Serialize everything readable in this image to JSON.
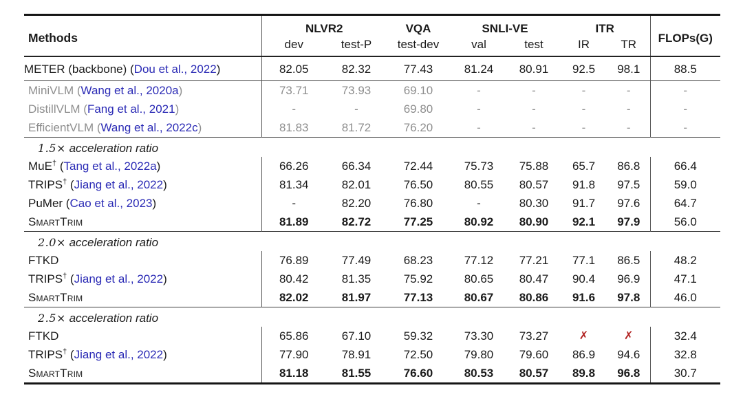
{
  "table": {
    "colors": {
      "citation": "#2a2ab5",
      "muted_text": "#8e8e8e",
      "cross_mark": "#b1201f"
    },
    "header": {
      "methods_label": "Methods",
      "groups": [
        {
          "label": "NLVR2"
        },
        {
          "label": "VQA"
        },
        {
          "label": "SNLI-VE"
        },
        {
          "label": "ITR"
        }
      ],
      "subs": [
        "dev",
        "test-P",
        "test-dev",
        "val",
        "test",
        "IR",
        "TR"
      ],
      "flops_label": "FLOPs(G)"
    },
    "sections": [
      {
        "id": "backbone",
        "roomy": true,
        "rows": [
          {
            "name": "METER (backbone) ",
            "cite": "Dou et al., 2022",
            "values": [
              "82.05",
              "82.32",
              "77.43",
              "81.24",
              "80.91",
              "92.5",
              "98.1"
            ],
            "flops": "88.5"
          }
        ]
      },
      {
        "id": "small-vlms",
        "muted": true,
        "rows": [
          {
            "name": "MiniVLM ",
            "cite": "Wang et al., 2020a",
            "values": [
              "73.71",
              "73.93",
              "69.10",
              "-",
              "-",
              "-",
              "-"
            ],
            "flops": "-"
          },
          {
            "name": "DistillVLM ",
            "cite": "Fang et al., 2021",
            "values": [
              "-",
              "-",
              "69.80",
              "-",
              "-",
              "-",
              "-"
            ],
            "flops": "-"
          },
          {
            "name": "EfficientVLM ",
            "cite": "Wang et al., 2022c",
            "values": [
              "81.83",
              "81.72",
              "76.20",
              "-",
              "-",
              "-",
              "-"
            ],
            "flops": "-"
          }
        ]
      },
      {
        "id": "accel-1-5x",
        "title": {
          "math": "1.5×",
          "text": "acceleration ratio"
        },
        "rows": [
          {
            "name": "MuE",
            "sup": "†",
            "cite": "Tang et al., 2022a",
            "values": [
              "66.26",
              "66.34",
              "72.44",
              "75.73",
              "75.88",
              "65.7",
              "86.8"
            ],
            "flops": "66.4"
          },
          {
            "name": "TRIPS",
            "sup": "†",
            "cite": "Jiang et al., 2022",
            "values": [
              "81.34",
              "82.01",
              "76.50",
              "80.55",
              "80.57",
              "91.8",
              "97.5"
            ],
            "flops": "59.0"
          },
          {
            "name": "PuMer ",
            "cite": "Cao et al., 2023",
            "values": [
              "-",
              "82.20",
              "76.80",
              "-",
              "80.30",
              "91.7",
              "97.6"
            ],
            "flops": "64.7"
          },
          {
            "name": "SmartTrim",
            "smallcaps": true,
            "bold": true,
            "values": [
              "81.89",
              "82.72",
              "77.25",
              "80.92",
              "80.90",
              "92.1",
              "97.9"
            ],
            "flops": "56.0"
          }
        ]
      },
      {
        "id": "accel-2-0x",
        "title": {
          "math": "2.0×",
          "text": "acceleration ratio"
        },
        "rows": [
          {
            "name": "FTKD",
            "values": [
              "76.89",
              "77.49",
              "68.23",
              "77.12",
              "77.21",
              "77.1",
              "86.5"
            ],
            "flops": "48.2"
          },
          {
            "name": "TRIPS",
            "sup": "†",
            "cite": "Jiang et al., 2022",
            "values": [
              "80.42",
              "81.35",
              "75.92",
              "80.65",
              "80.47",
              "90.4",
              "96.9"
            ],
            "flops": "47.1"
          },
          {
            "name": "SmartTrim",
            "smallcaps": true,
            "bold": true,
            "values": [
              "82.02",
              "81.97",
              "77.13",
              "80.67",
              "80.86",
              "91.6",
              "97.8"
            ],
            "flops": "46.0"
          }
        ]
      },
      {
        "id": "accel-2-5x",
        "title": {
          "math": "2.5×",
          "text": "acceleration ratio"
        },
        "rows": [
          {
            "name": "FTKD",
            "values": [
              "65.86",
              "67.10",
              "59.32",
              "73.30",
              "73.27",
              "✗",
              "✗"
            ],
            "flops": "32.4"
          },
          {
            "name": "TRIPS",
            "sup": "†",
            "cite": "Jiang et al., 2022",
            "values": [
              "77.90",
              "78.91",
              "72.50",
              "79.80",
              "79.60",
              "86.9",
              "94.6"
            ],
            "flops": "32.8"
          },
          {
            "name": "SmartTrim",
            "smallcaps": true,
            "bold": true,
            "values": [
              "81.18",
              "81.55",
              "76.60",
              "80.53",
              "80.57",
              "89.8",
              "96.8"
            ],
            "flops": "30.7"
          }
        ]
      }
    ]
  }
}
